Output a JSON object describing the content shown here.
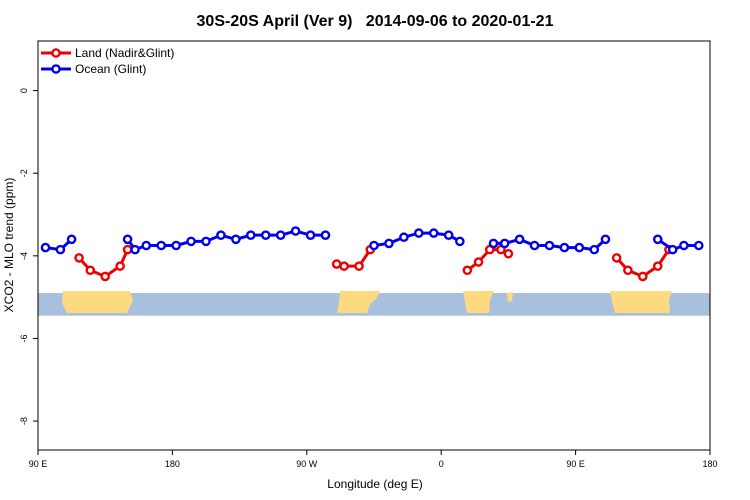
{
  "chart_data": {
    "type": "line",
    "title": "30S-20S April (Ver 9)   2014-09-06 to 2020-01-21",
    "xlabel": "Longitude (deg E)",
    "ylabel": "XCO2 - MLO trend (ppm)",
    "xlim": [
      90,
      540
    ],
    "ylim": [
      -8.7,
      1.2
    ],
    "x_ticks": [
      {
        "value": 90,
        "label": "90 E"
      },
      {
        "value": 180,
        "label": "180"
      },
      {
        "value": 270,
        "label": "90 W"
      },
      {
        "value": 360,
        "label": "0"
      },
      {
        "value": 450,
        "label": "90 E"
      },
      {
        "value": 540,
        "label": "180"
      }
    ],
    "y_ticks": [
      {
        "value": 0,
        "label": "0"
      },
      {
        "value": -2,
        "label": "-2"
      },
      {
        "value": -4,
        "label": "-4"
      },
      {
        "value": -6,
        "label": "-6"
      },
      {
        "value": -8,
        "label": "-8"
      }
    ],
    "legend": {
      "position": "top-left"
    },
    "grid": false,
    "map_band": {
      "y_top": -4.9,
      "y_bottom": -5.45,
      "ocean_color": "#a9bfde",
      "land_color": "#fdd980"
    },
    "series": [
      {
        "name": "Land (Nadir&Glint)",
        "color": "#ee0000",
        "segments": [
          [
            [
              117.5,
              -4.05
            ],
            [
              125,
              -4.35
            ],
            [
              135,
              -4.5
            ],
            [
              145,
              -4.25
            ],
            [
              150,
              -3.85
            ]
          ],
          [
            [
              290,
              -4.2
            ],
            [
              295,
              -4.25
            ],
            [
              305,
              -4.25
            ],
            [
              312.5,
              -3.85
            ]
          ],
          [
            [
              377.5,
              -4.35
            ],
            [
              385,
              -4.15
            ],
            [
              392.5,
              -3.85
            ],
            [
              400,
              -3.85
            ],
            [
              405,
              -3.95
            ]
          ],
          [
            [
              477.5,
              -4.05
            ],
            [
              485,
              -4.35
            ],
            [
              495,
              -4.5
            ],
            [
              505,
              -4.25
            ],
            [
              512.5,
              -3.85
            ]
          ]
        ]
      },
      {
        "name": "Ocean (Glint)",
        "color": "#0000ee",
        "segments": [
          [
            [
              95,
              -3.8
            ],
            [
              105,
              -3.85
            ],
            [
              112.5,
              -3.6
            ]
          ],
          [
            [
              150,
              -3.6
            ],
            [
              155,
              -3.85
            ],
            [
              162.5,
              -3.75
            ],
            [
              172.5,
              -3.75
            ],
            [
              182.5,
              -3.75
            ],
            [
              192.5,
              -3.65
            ],
            [
              202.5,
              -3.65
            ],
            [
              212.5,
              -3.5
            ],
            [
              222.5,
              -3.6
            ],
            [
              232.5,
              -3.5
            ],
            [
              242.5,
              -3.5
            ],
            [
              252.5,
              -3.5
            ],
            [
              262.5,
              -3.4
            ],
            [
              272.5,
              -3.5
            ],
            [
              282.5,
              -3.5
            ]
          ],
          [
            [
              315,
              -3.75
            ],
            [
              325,
              -3.7
            ],
            [
              335,
              -3.55
            ],
            [
              345,
              -3.45
            ],
            [
              355,
              -3.45
            ],
            [
              365,
              -3.5
            ],
            [
              372.5,
              -3.65
            ]
          ],
          [
            [
              395,
              -3.7
            ],
            [
              402.5,
              -3.7
            ],
            [
              412.5,
              -3.6
            ],
            [
              422.5,
              -3.75
            ],
            [
              432.5,
              -3.75
            ],
            [
              442.5,
              -3.8
            ],
            [
              452.5,
              -3.8
            ],
            [
              462.5,
              -3.85
            ],
            [
              470,
              -3.6
            ]
          ],
          [
            [
              505,
              -3.6
            ],
            [
              515,
              -3.85
            ],
            [
              522.5,
              -3.75
            ],
            [
              532.5,
              -3.75
            ]
          ]
        ]
      }
    ]
  }
}
